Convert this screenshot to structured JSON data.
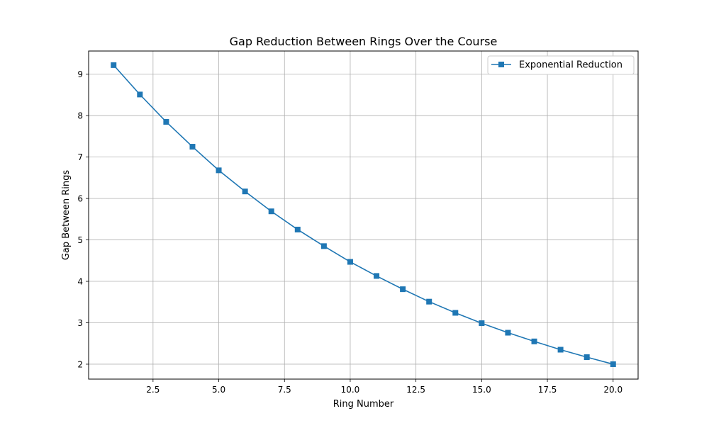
{
  "chart_data": {
    "type": "line",
    "title": "Gap Reduction Between Rings Over the Course",
    "xlabel": "Ring Number",
    "ylabel": "Gap Between Rings",
    "xlim": [
      0.05,
      20.95
    ],
    "ylim": [
      1.64,
      9.56
    ],
    "x_ticks": [
      2.5,
      5.0,
      7.5,
      10.0,
      12.5,
      15.0,
      17.5,
      20.0
    ],
    "x_tick_labels": [
      "2.5",
      "5.0",
      "7.5",
      "10.0",
      "12.5",
      "15.0",
      "17.5",
      "20.0"
    ],
    "y_ticks": [
      2,
      3,
      4,
      5,
      6,
      7,
      8,
      9
    ],
    "y_tick_labels": [
      "2",
      "3",
      "4",
      "5",
      "6",
      "7",
      "8",
      "9"
    ],
    "grid": true,
    "legend": "upper-right",
    "series": [
      {
        "name": "Exponential Reduction",
        "color": "#1f77b4",
        "marker": "square",
        "x": [
          1,
          2,
          3,
          4,
          5,
          6,
          7,
          8,
          9,
          10,
          11,
          12,
          13,
          14,
          15,
          16,
          17,
          18,
          19,
          20
        ],
        "y": [
          9.22,
          8.51,
          7.85,
          7.25,
          6.68,
          6.17,
          5.69,
          5.25,
          4.85,
          4.47,
          4.13,
          3.81,
          3.51,
          3.24,
          2.99,
          2.76,
          2.55,
          2.35,
          2.17,
          2.0
        ]
      }
    ]
  }
}
